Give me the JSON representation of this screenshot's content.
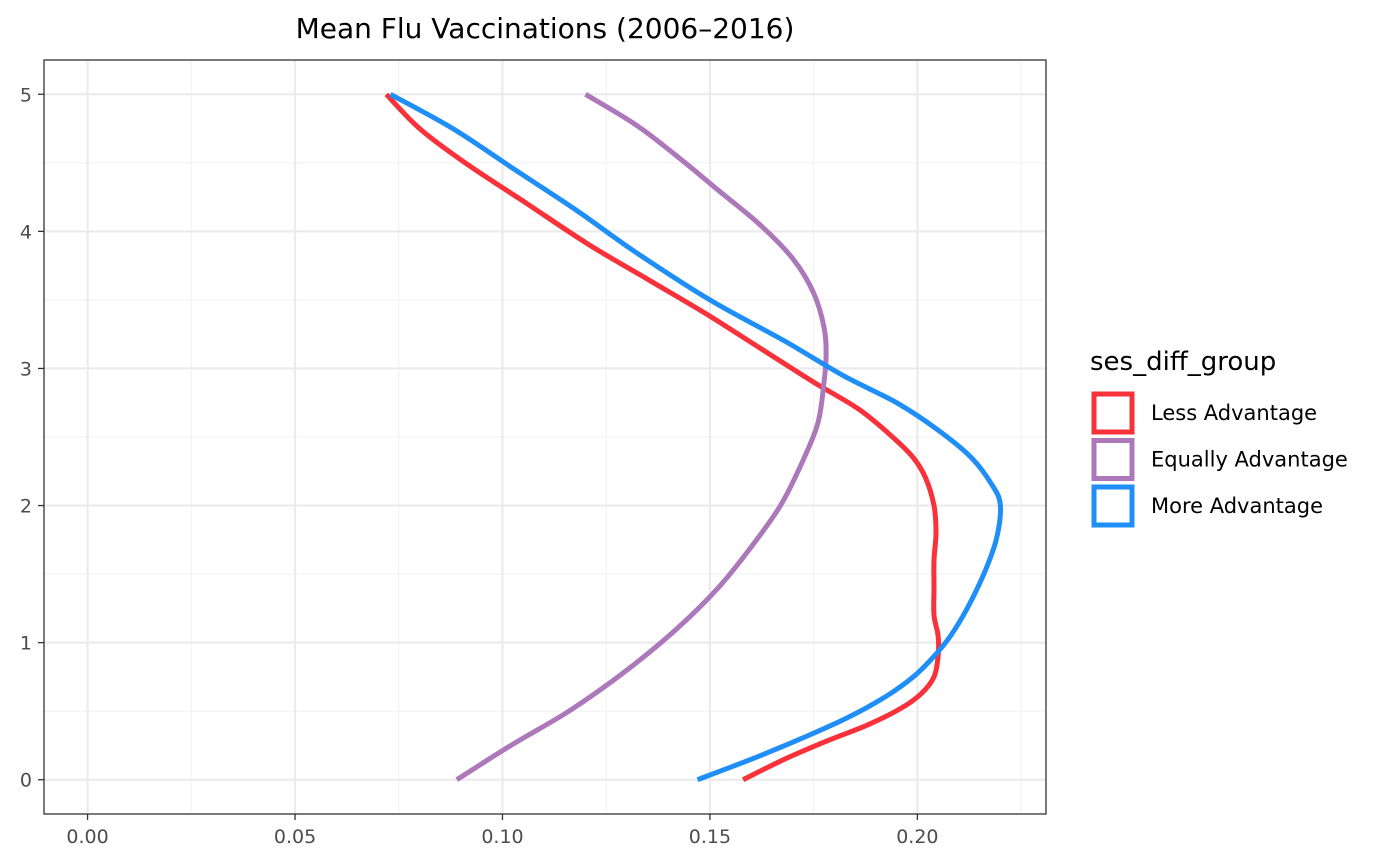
{
  "chart_data": {
    "type": "line",
    "title": "Mean Flu Vaccinations (2006–2016)",
    "xlabel": "",
    "ylabel": "",
    "xlim": [
      -0.0105,
      0.231
    ],
    "ylim": [
      -0.25,
      5.25
    ],
    "x_ticks": [
      0.0,
      0.05,
      0.1,
      0.15,
      0.2
    ],
    "x_tick_labels": [
      "0.00",
      "0.05",
      "0.10",
      "0.15",
      "0.20"
    ],
    "y_ticks": [
      0,
      1,
      2,
      3,
      4,
      5
    ],
    "y_tick_labels": [
      "0",
      "1",
      "2",
      "3",
      "4",
      "5"
    ],
    "grid": true,
    "legend": {
      "title": "ses_diff_group",
      "position": "right"
    },
    "series": [
      {
        "name": "Less Advantage",
        "color": "#f8313a",
        "points": [
          [
            0.158,
            0.0
          ],
          [
            0.168,
            0.15
          ],
          [
            0.178,
            0.28
          ],
          [
            0.188,
            0.4
          ],
          [
            0.196,
            0.52
          ],
          [
            0.201,
            0.63
          ],
          [
            0.204,
            0.75
          ],
          [
            0.205,
            0.9
          ],
          [
            0.205,
            1.05
          ],
          [
            0.204,
            1.2
          ],
          [
            0.204,
            1.4
          ],
          [
            0.204,
            1.6
          ],
          [
            0.2045,
            1.8
          ],
          [
            0.204,
            2.0
          ],
          [
            0.202,
            2.2
          ],
          [
            0.199,
            2.35
          ],
          [
            0.194,
            2.5
          ],
          [
            0.186,
            2.7
          ],
          [
            0.175,
            2.9
          ],
          [
            0.162,
            3.15
          ],
          [
            0.149,
            3.4
          ],
          [
            0.135,
            3.65
          ],
          [
            0.121,
            3.9
          ],
          [
            0.106,
            4.2
          ],
          [
            0.091,
            4.5
          ],
          [
            0.08,
            4.75
          ],
          [
            0.072,
            5.0
          ]
        ]
      },
      {
        "name": "Equally Advantage",
        "color": "#ac78ba",
        "points": [
          [
            0.089,
            0.0
          ],
          [
            0.102,
            0.25
          ],
          [
            0.116,
            0.5
          ],
          [
            0.13,
            0.8
          ],
          [
            0.142,
            1.1
          ],
          [
            0.152,
            1.4
          ],
          [
            0.16,
            1.7
          ],
          [
            0.167,
            2.0
          ],
          [
            0.172,
            2.3
          ],
          [
            0.176,
            2.6
          ],
          [
            0.1775,
            2.9
          ],
          [
            0.178,
            3.1
          ],
          [
            0.1775,
            3.3
          ],
          [
            0.175,
            3.55
          ],
          [
            0.17,
            3.8
          ],
          [
            0.162,
            4.05
          ],
          [
            0.152,
            4.3
          ],
          [
            0.142,
            4.55
          ],
          [
            0.132,
            4.78
          ],
          [
            0.12,
            5.0
          ]
        ]
      },
      {
        "name": "More Advantage",
        "color": "#1f8ff7",
        "points": [
          [
            0.147,
            0.0
          ],
          [
            0.16,
            0.15
          ],
          [
            0.172,
            0.3
          ],
          [
            0.183,
            0.45
          ],
          [
            0.192,
            0.6
          ],
          [
            0.199,
            0.75
          ],
          [
            0.204,
            0.9
          ],
          [
            0.208,
            1.05
          ],
          [
            0.212,
            1.25
          ],
          [
            0.216,
            1.5
          ],
          [
            0.219,
            1.75
          ],
          [
            0.22,
            2.0
          ],
          [
            0.218,
            2.15
          ],
          [
            0.213,
            2.35
          ],
          [
            0.205,
            2.55
          ],
          [
            0.195,
            2.75
          ],
          [
            0.182,
            2.95
          ],
          [
            0.168,
            3.2
          ],
          [
            0.15,
            3.5
          ],
          [
            0.132,
            3.85
          ],
          [
            0.118,
            4.15
          ],
          [
            0.103,
            4.45
          ],
          [
            0.088,
            4.75
          ],
          [
            0.073,
            5.0
          ]
        ]
      }
    ]
  }
}
